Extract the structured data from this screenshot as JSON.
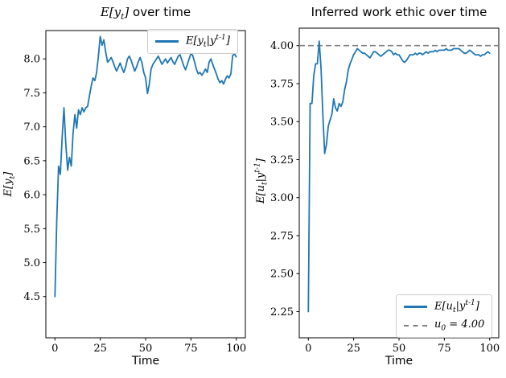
{
  "figure": {
    "background": "#ffffff",
    "accent_blue": "#1f77b4",
    "reference_gray": "#7f7f7f"
  },
  "chart_data": [
    {
      "type": "line",
      "title_math": "E[y_t]",
      "title_text": " over time",
      "xlabel": "Time",
      "ylabel_math": "E[y_t]",
      "x_ticks": [
        "0",
        "25",
        "50",
        "75",
        "100"
      ],
      "y_ticks": [
        "8.0",
        "7.5",
        "7.0",
        "6.5",
        "6.0",
        "5.5",
        "5.0",
        "4.5"
      ],
      "xlim": [
        -5,
        105
      ],
      "ylim": [
        3.893,
        8.417
      ],
      "grid": false,
      "legend": {
        "position": "upper right",
        "entries": [
          {
            "label_math": "E[y_t|y^{t-1}]",
            "color": "#1f77b4",
            "style": "solid"
          }
        ]
      },
      "x_range": [
        0,
        100
      ],
      "x_step": 1,
      "series": [
        {
          "name_math": "E[y_t|y^{t-1}]",
          "color": "#1f77b4",
          "values": [
            4.5,
            5.6,
            6.42,
            6.3,
            6.85,
            7.28,
            6.75,
            6.36,
            6.55,
            6.42,
            6.9,
            7.18,
            6.98,
            7.25,
            7.18,
            7.28,
            7.22,
            7.28,
            7.3,
            7.45,
            7.6,
            7.72,
            7.68,
            7.8,
            8.05,
            8.33,
            8.2,
            8.28,
            8.1,
            7.95,
            7.98,
            8.02,
            7.96,
            7.88,
            7.82,
            7.88,
            7.94,
            7.86,
            7.8,
            7.88,
            8.0,
            8.04,
            7.98,
            7.9,
            7.82,
            7.88,
            7.96,
            8.02,
            7.94,
            7.8,
            7.72,
            7.49,
            7.62,
            7.85,
            7.92,
            7.96,
            8.0,
            8.04,
            7.98,
            7.92,
            7.96,
            8.0,
            7.94,
            7.98,
            8.02,
            7.96,
            7.92,
            7.98,
            8.04,
            8.06,
            7.98,
            7.9,
            7.84,
            7.92,
            8.0,
            8.08,
            8.05,
            7.95,
            7.85,
            7.78,
            7.8,
            7.76,
            7.8,
            7.85,
            7.8,
            7.95,
            8.0,
            7.92,
            7.85,
            7.78,
            7.7,
            7.65,
            7.68,
            7.63,
            7.7,
            7.75,
            7.72,
            7.78,
            8.05,
            8.07,
            8.03
          ]
        }
      ]
    },
    {
      "type": "line",
      "title_text": "Inferred work ethic over time",
      "xlabel": "Time",
      "ylabel_math": "E[u_t|y^{t-1}]",
      "x_ticks": [
        "0",
        "25",
        "50",
        "75",
        "100"
      ],
      "y_ticks": [
        "4.00",
        "3.75",
        "3.50",
        "3.25",
        "3.00",
        "2.75",
        "2.50",
        "2.25"
      ],
      "xlim": [
        -5,
        105
      ],
      "ylim": [
        2.078,
        4.115
      ],
      "grid": false,
      "reference_line": {
        "value": 4.0,
        "label_math": "u_0 = 4.00",
        "color": "#7f7f7f",
        "style": "dashed"
      },
      "legend": {
        "position": "lower right",
        "entries": [
          {
            "label_math": "E[u_t|y^{t-1}]",
            "color": "#1f77b4",
            "style": "solid"
          },
          {
            "label_math": "u_0 = 4.00",
            "color": "#7f7f7f",
            "style": "dashed"
          }
        ]
      },
      "x_range": [
        0,
        100
      ],
      "x_step": 1,
      "series": [
        {
          "name_math": "E[u_t|y^{t-1}]",
          "color": "#1f77b4",
          "values": [
            2.25,
            3.62,
            3.62,
            3.8,
            3.88,
            3.88,
            4.03,
            3.85,
            3.55,
            3.29,
            3.35,
            3.47,
            3.51,
            3.55,
            3.65,
            3.59,
            3.57,
            3.62,
            3.6,
            3.63,
            3.71,
            3.76,
            3.84,
            3.88,
            3.91,
            3.94,
            3.96,
            3.98,
            3.97,
            3.96,
            3.95,
            3.95,
            3.94,
            3.93,
            3.92,
            3.94,
            3.96,
            3.96,
            3.95,
            3.94,
            3.93,
            3.94,
            3.95,
            3.96,
            3.97,
            3.97,
            3.96,
            3.94,
            3.95,
            3.94,
            3.94,
            3.92,
            3.9,
            3.89,
            3.9,
            3.92,
            3.94,
            3.94,
            3.94,
            3.95,
            3.94,
            3.95,
            3.95,
            3.94,
            3.95,
            3.96,
            3.95,
            3.96,
            3.96,
            3.96,
            3.97,
            3.96,
            3.97,
            3.97,
            3.97,
            3.97,
            3.98,
            3.97,
            3.97,
            3.97,
            3.98,
            3.98,
            3.98,
            3.98,
            3.97,
            3.96,
            3.95,
            3.95,
            3.96,
            3.97,
            3.96,
            3.95,
            3.94,
            3.94,
            3.94,
            3.93,
            3.94,
            3.94,
            3.95,
            3.96,
            3.95
          ]
        }
      ]
    }
  ]
}
